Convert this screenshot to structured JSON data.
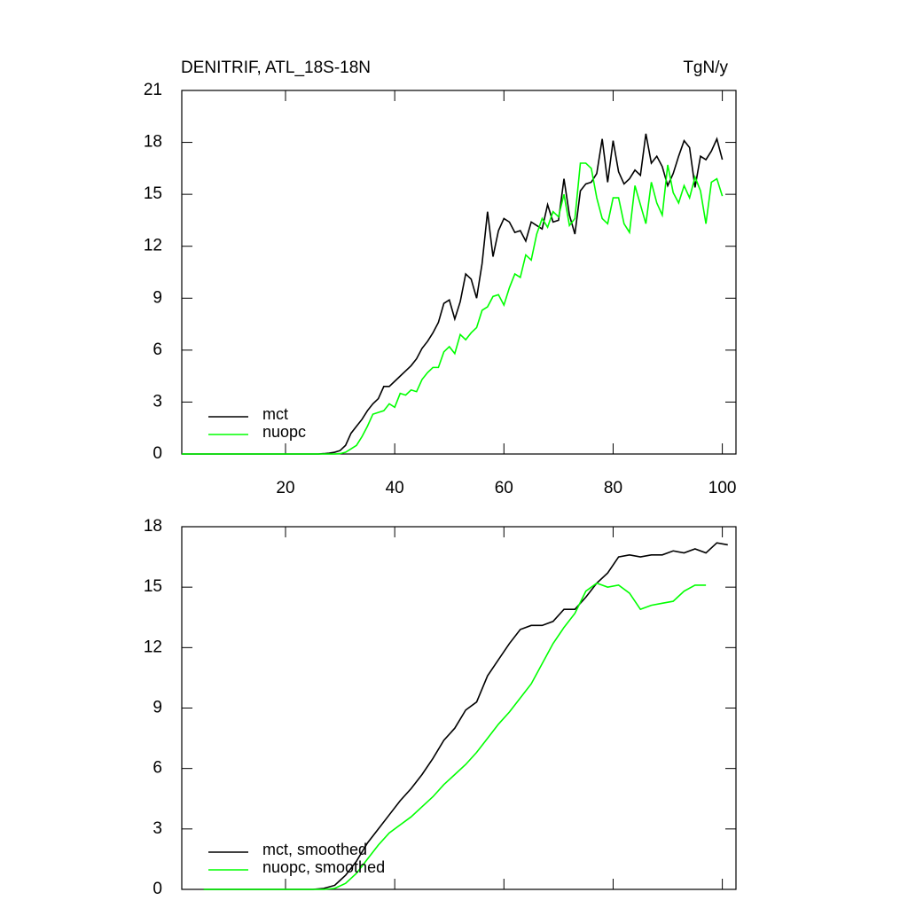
{
  "chart_data": [
    {
      "type": "line",
      "title": "DENITRIF, ATL_18S-18N",
      "units": "TgN/y",
      "x": [
        1,
        2,
        3,
        4,
        5,
        6,
        7,
        8,
        9,
        10,
        11,
        12,
        13,
        14,
        15,
        16,
        17,
        18,
        19,
        20,
        21,
        22,
        23,
        24,
        25,
        26,
        27,
        28,
        29,
        30,
        31,
        32,
        33,
        34,
        35,
        36,
        37,
        38,
        39,
        40,
        41,
        42,
        43,
        44,
        45,
        46,
        47,
        48,
        49,
        50,
        51,
        52,
        53,
        54,
        55,
        56,
        57,
        58,
        59,
        60,
        61,
        62,
        63,
        64,
        65,
        66,
        67,
        68,
        69,
        70,
        71,
        72,
        73,
        74,
        75,
        76,
        77,
        78,
        79,
        80,
        81,
        82,
        83,
        84,
        85,
        86,
        87,
        88,
        89,
        90,
        91,
        92,
        93,
        94,
        95,
        96,
        97,
        98,
        99,
        100
      ],
      "series": [
        {
          "name": "mct",
          "color": "#000000",
          "values": [
            0,
            0,
            0,
            0,
            0,
            0,
            0,
            0,
            0,
            0,
            0,
            0,
            0,
            0,
            0,
            0,
            0,
            0,
            0,
            0,
            0,
            0,
            0,
            0,
            0,
            0,
            0.02,
            0.05,
            0.1,
            0.2,
            0.5,
            1.2,
            1.6,
            2.0,
            2.5,
            2.9,
            3.2,
            3.9,
            3.9,
            4.2,
            4.5,
            4.8,
            5.1,
            5.5,
            6.1,
            6.5,
            7.0,
            7.6,
            8.7,
            8.9,
            7.8,
            8.8,
            10.4,
            10.1,
            9.0,
            11.0,
            14.0,
            11.4,
            12.9,
            13.6,
            13.4,
            12.8,
            12.9,
            12.3,
            13.4,
            13.2,
            13.0,
            14.4,
            13.4,
            13.5,
            15.9,
            13.8,
            12.7,
            15.2,
            15.6,
            15.7,
            16.2,
            18.2,
            15.7,
            18.1,
            16.3,
            15.6,
            15.9,
            16.4,
            16.1,
            18.5,
            16.8,
            17.2,
            16.6,
            15.5,
            16.2,
            17.2,
            18.1,
            17.7,
            15.4,
            17.2,
            17.0,
            17.5,
            18.2,
            17.0
          ]
        },
        {
          "name": "nuopc",
          "color": "#00ff00",
          "values": [
            0,
            0,
            0,
            0,
            0,
            0,
            0,
            0,
            0,
            0,
            0,
            0,
            0,
            0,
            0,
            0,
            0,
            0,
            0,
            0,
            0,
            0,
            0,
            0,
            0,
            0,
            0,
            0,
            0,
            0.02,
            0.1,
            0.3,
            0.5,
            1.0,
            1.6,
            2.3,
            2.4,
            2.5,
            2.9,
            2.7,
            3.5,
            3.4,
            3.7,
            3.6,
            4.3,
            4.7,
            5.0,
            5.0,
            5.9,
            6.2,
            5.8,
            6.9,
            6.6,
            7.0,
            7.3,
            8.3,
            8.5,
            9.1,
            9.2,
            8.6,
            9.6,
            10.4,
            10.2,
            11.5,
            11.2,
            12.7,
            13.6,
            13.1,
            14.0,
            13.7,
            15.0,
            13.2,
            13.6,
            16.8,
            16.8,
            16.5,
            14.8,
            13.6,
            13.3,
            14.8,
            14.8,
            13.3,
            12.8,
            15.5,
            14.4,
            13.3,
            15.7,
            14.5,
            13.8,
            16.7,
            15.1,
            14.5,
            15.5,
            14.8,
            16.0,
            15.2,
            13.3,
            15.7,
            15.9,
            14.9
          ]
        }
      ],
      "xlim": [
        1,
        102.5
      ],
      "ylim": [
        0,
        21
      ],
      "xticks": [
        20,
        40,
        60,
        80,
        100
      ],
      "yticks": [
        0,
        3,
        6,
        9,
        12,
        15,
        18,
        21
      ],
      "legend": "lower left"
    },
    {
      "type": "line",
      "x": [
        5,
        7,
        9,
        11,
        13,
        15,
        17,
        19,
        21,
        23,
        25,
        27,
        29,
        31,
        33,
        35,
        37,
        39,
        41,
        43,
        45,
        47,
        49,
        51,
        53,
        55,
        57,
        59,
        61,
        63,
        65,
        67,
        69,
        71,
        73,
        75,
        77,
        79,
        81,
        83,
        85,
        87,
        89,
        91,
        93,
        95,
        97,
        99,
        101
      ],
      "series": [
        {
          "name": "mct, smoothed",
          "color": "#000000",
          "values": [
            0,
            0,
            0,
            0,
            0,
            0,
            0,
            0,
            0,
            0,
            0,
            0.05,
            0.2,
            0.7,
            1.4,
            2.3,
            3.0,
            3.7,
            4.4,
            5.0,
            5.7,
            6.5,
            7.4,
            8.0,
            8.9,
            9.3,
            10.6,
            11.4,
            12.2,
            12.9,
            13.1,
            13.1,
            13.3,
            13.9,
            13.9,
            14.5,
            15.2,
            15.7,
            16.5,
            16.6,
            16.5,
            16.6,
            16.6,
            16.8,
            16.7,
            16.9,
            16.7,
            17.2,
            17.1
          ]
        },
        {
          "name": "nuopc, smoothed",
          "color": "#00ff00",
          "values": [
            0,
            0,
            0,
            0,
            0,
            0,
            0,
            0,
            0,
            0,
            0,
            0,
            0.05,
            0.3,
            0.8,
            1.5,
            2.2,
            2.8,
            3.2,
            3.6,
            4.1,
            4.6,
            5.2,
            5.7,
            6.2,
            6.8,
            7.5,
            8.2,
            8.8,
            9.5,
            10.2,
            11.2,
            12.2,
            13.0,
            13.7,
            14.8,
            15.2,
            15.0,
            15.1,
            14.7,
            13.9,
            14.1,
            14.2,
            14.3,
            14.8,
            15.1,
            15.1,
            null,
            null
          ]
        }
      ],
      "xlim": [
        1,
        102.5
      ],
      "ylim": [
        0,
        18
      ],
      "yticks": [
        0,
        3,
        6,
        9,
        12,
        15,
        18
      ],
      "legend": "lower left"
    }
  ]
}
